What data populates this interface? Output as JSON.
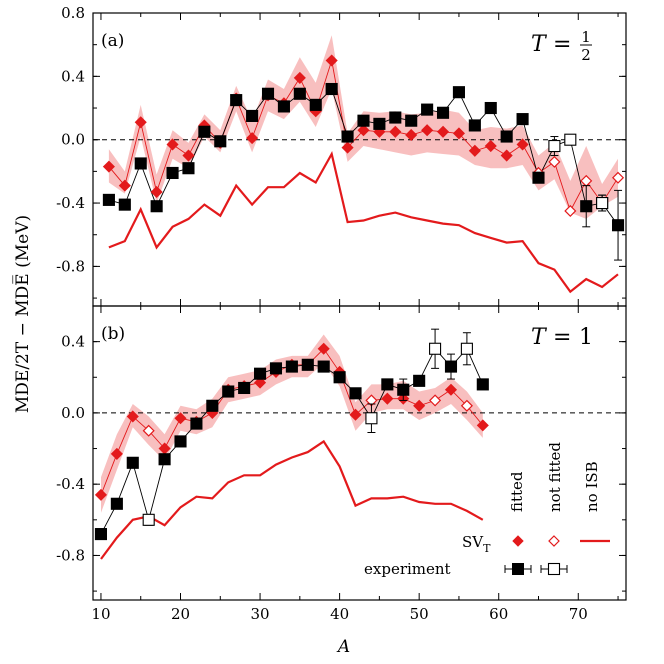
{
  "chart_data": [
    {
      "type": "line",
      "panel_label": "(a)",
      "panel_title": "T = 1/2",
      "panel_title_T": "T",
      "panel_title_num": "1",
      "panel_title_den": "2",
      "ylabel": "MDE/2T − MDE̅ (MeV)",
      "ylim": [
        -1.05,
        0.8
      ],
      "yticks": [
        -0.8,
        -0.4,
        0.0,
        0.4,
        0.8
      ],
      "ytick_labels": [
        "-0.8",
        "-0.4",
        "0.0",
        "0.4",
        "0.8"
      ],
      "xlim": [
        9,
        76
      ],
      "zero_line": "dashed",
      "series": [
        {
          "name": "fitted",
          "style": "band",
          "color": "#f7b4b4",
          "x": [
            11,
            13,
            15,
            17,
            19,
            21,
            23,
            25,
            27,
            29,
            31,
            33,
            35,
            37,
            39,
            41,
            43,
            45,
            47,
            49,
            51,
            53,
            55,
            57,
            59,
            61,
            63,
            65,
            67,
            69,
            71,
            73,
            75
          ],
          "lower": [
            -0.27,
            -0.34,
            0.02,
            -0.4,
            -0.12,
            -0.18,
            0.02,
            -0.08,
            0.18,
            -0.08,
            0.18,
            0.13,
            0.24,
            0.08,
            0.32,
            -0.14,
            -0.04,
            -0.06,
            -0.08,
            -0.1,
            -0.08,
            -0.09,
            -0.1,
            -0.16,
            -0.18,
            -0.18,
            -0.16,
            -0.32,
            -0.25,
            -0.46,
            -0.5,
            -0.42,
            -0.36
          ],
          "upper": [
            -0.06,
            -0.2,
            0.22,
            -0.22,
            0.06,
            -0.02,
            0.16,
            0.06,
            0.34,
            0.12,
            0.38,
            0.32,
            0.52,
            0.36,
            0.66,
            0.04,
            0.18,
            0.17,
            0.18,
            0.16,
            0.17,
            0.19,
            0.17,
            0.06,
            0.08,
            0.07,
            0.09,
            -0.1,
            -0.02,
            -0.26,
            -0.04,
            -0.28,
            -0.12
          ]
        },
        {
          "name": "SV_T fitted",
          "style": "filled-diamond",
          "color": "#e31a1c",
          "x": [
            11,
            13,
            15,
            17,
            19,
            21,
            23,
            25,
            27,
            29,
            31,
            33,
            35,
            37,
            39,
            41,
            43,
            45,
            47,
            49,
            51,
            53,
            55,
            57,
            59,
            61,
            63,
            65
          ],
          "values": [
            -0.17,
            -0.29,
            0.11,
            -0.33,
            -0.03,
            -0.1,
            0.09,
            -0.02,
            0.26,
            0.01,
            0.28,
            0.23,
            0.39,
            0.18,
            0.5,
            -0.05,
            0.06,
            0.05,
            0.05,
            0.03,
            0.06,
            0.05,
            0.04,
            -0.07,
            -0.04,
            -0.1,
            -0.03,
            -0.21
          ]
        },
        {
          "name": "SV_T not fitted",
          "style": "open-diamond",
          "color": "#e31a1c",
          "x": [
            65,
            67,
            69,
            71,
            73,
            75
          ],
          "values": [
            -0.21,
            -0.14,
            -0.45,
            -0.26,
            -0.4,
            -0.24
          ]
        },
        {
          "name": "no ISB",
          "style": "line",
          "color": "#e31a1c",
          "x": [
            11,
            13,
            15,
            17,
            19,
            21,
            23,
            25,
            27,
            29,
            31,
            33,
            35,
            37,
            39,
            41,
            43,
            45,
            47,
            49,
            51,
            53,
            55,
            57,
            59,
            61,
            63,
            65,
            67,
            69,
            71,
            73,
            75
          ],
          "values": [
            -0.68,
            -0.64,
            -0.44,
            -0.68,
            -0.55,
            -0.5,
            -0.41,
            -0.48,
            -0.29,
            -0.41,
            -0.3,
            -0.3,
            -0.21,
            -0.27,
            -0.09,
            -0.52,
            -0.51,
            -0.48,
            -0.46,
            -0.49,
            -0.51,
            -0.53,
            -0.54,
            -0.59,
            -0.62,
            -0.65,
            -0.64,
            -0.78,
            -0.82,
            -0.96,
            -0.88,
            -0.93,
            -0.85
          ]
        },
        {
          "name": "experiment fitted",
          "style": "filled-square",
          "color": "#000000",
          "x": [
            11,
            13,
            15,
            17,
            19,
            21,
            23,
            25,
            27,
            29,
            31,
            33,
            35,
            37,
            39,
            41,
            43,
            45,
            47,
            49,
            51,
            53,
            55,
            57,
            59,
            61,
            63,
            65,
            67,
            69,
            71,
            73,
            75
          ],
          "values": [
            -0.38,
            -0.41,
            -0.15,
            -0.42,
            -0.21,
            -0.18,
            0.05,
            -0.01,
            0.25,
            0.15,
            0.29,
            0.21,
            0.29,
            0.22,
            0.32,
            0.02,
            0.12,
            0.1,
            0.14,
            0.12,
            0.19,
            0.17,
            0.3,
            0.09,
            0.2,
            0.02,
            0.13,
            -0.24,
            null,
            null,
            -0.42,
            -0.4,
            -0.54
          ],
          "errors": [
            0,
            0,
            0,
            0,
            0,
            0,
            0,
            0,
            0,
            0,
            0,
            0,
            0,
            0,
            0,
            0,
            0,
            0,
            0,
            0,
            0,
            0,
            0,
            0,
            0,
            0,
            0,
            0,
            0,
            0,
            0.13,
            0.05,
            0.22
          ]
        },
        {
          "name": "experiment not fitted",
          "style": "open-square",
          "color": "#000000",
          "x": [
            67,
            69,
            73
          ],
          "values": [
            -0.04,
            0.0,
            -0.4
          ],
          "errors": [
            0.06,
            0.03,
            0.05
          ]
        }
      ],
      "experiment_path": {
        "x": [
          11,
          13,
          15,
          17,
          19,
          21,
          23,
          25,
          27,
          29,
          31,
          33,
          35,
          37,
          39,
          41,
          43,
          45,
          47,
          49,
          51,
          53,
          55,
          57,
          59,
          61,
          63,
          65,
          67,
          69,
          71,
          73,
          75
        ],
        "values": [
          -0.38,
          -0.41,
          -0.15,
          -0.42,
          -0.21,
          -0.18,
          0.05,
          -0.01,
          0.25,
          0.15,
          0.29,
          0.21,
          0.29,
          0.22,
          0.32,
          0.02,
          0.12,
          0.1,
          0.14,
          0.12,
          0.19,
          0.17,
          0.3,
          0.09,
          0.2,
          0.02,
          0.13,
          -0.24,
          -0.04,
          0.0,
          -0.42,
          -0.4,
          -0.54
        ]
      },
      "svt_path": {
        "x": [
          11,
          13,
          15,
          17,
          19,
          21,
          23,
          25,
          27,
          29,
          31,
          33,
          35,
          37,
          39,
          41,
          43,
          45,
          47,
          49,
          51,
          53,
          55,
          57,
          59,
          61,
          63,
          65,
          67,
          69,
          71,
          73,
          75
        ],
        "values": [
          -0.17,
          -0.29,
          0.11,
          -0.33,
          -0.03,
          -0.1,
          0.09,
          -0.02,
          0.26,
          0.01,
          0.28,
          0.23,
          0.39,
          0.18,
          0.5,
          -0.05,
          0.06,
          0.05,
          0.05,
          0.03,
          0.06,
          0.05,
          0.04,
          -0.07,
          -0.04,
          -0.1,
          -0.03,
          -0.21,
          -0.14,
          -0.45,
          -0.26,
          -0.4,
          -0.24
        ]
      }
    },
    {
      "type": "line",
      "panel_label": "(b)",
      "panel_title": "T = 1",
      "panel_title_T": "T",
      "panel_title_num": "1",
      "ylim": [
        -1.05,
        0.6
      ],
      "yticks": [
        -0.8,
        -0.4,
        0.0,
        0.4
      ],
      "ytick_labels": [
        "-0.8",
        "-0.4",
        "0.0",
        "0.4"
      ],
      "xlim": [
        9,
        76
      ],
      "xlabel": "A",
      "xticks": [
        10,
        20,
        30,
        40,
        50,
        60,
        70
      ],
      "xtick_labels": [
        "10",
        "20",
        "30",
        "40",
        "50",
        "60",
        "70"
      ],
      "zero_line": "dashed",
      "series": [
        {
          "name": "fitted",
          "style": "band",
          "color": "#f7b4b4",
          "x": [
            10,
            12,
            14,
            16,
            18,
            20,
            22,
            24,
            26,
            28,
            30,
            32,
            34,
            36,
            38,
            40,
            42,
            44,
            46,
            48,
            50,
            52,
            54,
            56,
            58
          ],
          "lower": [
            -0.56,
            -0.32,
            -0.08,
            -0.18,
            -0.27,
            -0.1,
            -0.12,
            -0.08,
            0.06,
            0.08,
            0.1,
            0.16,
            0.2,
            0.2,
            0.28,
            0.15,
            -0.1,
            0.0,
            0.02,
            0.02,
            -0.04,
            0.0,
            0.05,
            -0.04,
            -0.14
          ],
          "upper": [
            -0.36,
            -0.12,
            0.05,
            -0.02,
            -0.12,
            0.04,
            0.02,
            0.08,
            0.2,
            0.22,
            0.24,
            0.3,
            0.32,
            0.32,
            0.44,
            0.32,
            0.06,
            0.16,
            0.16,
            0.18,
            0.12,
            0.14,
            0.2,
            0.12,
            0.0
          ]
        },
        {
          "name": "SV_T fitted",
          "style": "filled-diamond",
          "color": "#e31a1c",
          "x": [
            10,
            12,
            14,
            18,
            20,
            22,
            24,
            26,
            28,
            30,
            32,
            34,
            36,
            38,
            40,
            42,
            46,
            48,
            50,
            54,
            58
          ],
          "values": [
            -0.46,
            -0.23,
            -0.02,
            -0.2,
            -0.03,
            -0.05,
            0.0,
            0.13,
            0.15,
            0.17,
            0.23,
            0.27,
            0.27,
            0.36,
            0.23,
            -0.01,
            0.08,
            0.08,
            0.04,
            0.13,
            -0.07
          ]
        },
        {
          "name": "SV_T not fitted",
          "style": "open-diamond",
          "color": "#e31a1c",
          "x": [
            16,
            44,
            52,
            56
          ],
          "values": [
            -0.1,
            0.07,
            0.07,
            0.04
          ]
        },
        {
          "name": "no ISB",
          "style": "line",
          "color": "#e31a1c",
          "x": [
            10,
            12,
            14,
            16,
            18,
            20,
            22,
            24,
            26,
            28,
            30,
            32,
            34,
            36,
            38,
            40,
            42,
            44,
            46,
            48,
            50,
            52,
            54,
            56,
            58
          ],
          "values": [
            -0.82,
            -0.7,
            -0.6,
            -0.58,
            -0.63,
            -0.53,
            -0.47,
            -0.48,
            -0.39,
            -0.35,
            -0.35,
            -0.29,
            -0.25,
            -0.22,
            -0.16,
            -0.3,
            -0.52,
            -0.48,
            -0.48,
            -0.47,
            -0.5,
            -0.51,
            -0.51,
            -0.55,
            -0.6
          ]
        },
        {
          "name": "experiment fitted",
          "style": "filled-square",
          "color": "#000000",
          "x": [
            10,
            12,
            14,
            18,
            20,
            22,
            24,
            26,
            28,
            30,
            32,
            34,
            36,
            38,
            40,
            42,
            46,
            48,
            50,
            54,
            58
          ],
          "values": [
            -0.68,
            -0.51,
            -0.28,
            -0.26,
            -0.16,
            -0.06,
            0.04,
            0.12,
            0.14,
            0.22,
            0.25,
            0.26,
            0.27,
            0.26,
            0.2,
            0.11,
            0.16,
            0.13,
            0.18,
            0.26,
            0.16
          ],
          "errors": [
            0,
            0,
            0,
            0,
            0,
            0,
            0,
            0,
            0,
            0,
            0,
            0,
            0,
            0,
            0,
            0,
            0,
            0.06,
            0,
            0.07,
            0
          ]
        },
        {
          "name": "experiment not fitted",
          "style": "open-square",
          "color": "#000000",
          "x": [
            16,
            44,
            52,
            56
          ],
          "values": [
            -0.6,
            -0.03,
            0.36,
            0.36
          ],
          "errors": [
            0.03,
            0.08,
            0.11,
            0.09
          ]
        }
      ],
      "experiment_path": {
        "x": [
          10,
          12,
          14,
          16,
          18,
          20,
          22,
          24,
          26,
          28,
          30,
          32,
          34,
          36,
          38,
          40,
          42,
          44,
          46,
          48,
          50,
          52,
          54,
          56,
          58
        ],
        "values": [
          -0.68,
          -0.51,
          -0.28,
          -0.6,
          -0.26,
          -0.16,
          -0.06,
          0.04,
          0.12,
          0.14,
          0.22,
          0.25,
          0.26,
          0.27,
          0.26,
          0.2,
          0.11,
          -0.03,
          0.16,
          0.13,
          0.18,
          0.36,
          0.26,
          0.36,
          0.16
        ]
      },
      "svt_path": {
        "x": [
          10,
          12,
          14,
          16,
          18,
          20,
          22,
          24,
          26,
          28,
          30,
          32,
          34,
          36,
          38,
          40,
          42,
          44,
          46,
          48,
          50,
          52,
          54,
          56,
          58
        ],
        "values": [
          -0.46,
          -0.23,
          -0.02,
          -0.1,
          -0.2,
          -0.03,
          -0.05,
          0.0,
          0.13,
          0.15,
          0.17,
          0.23,
          0.27,
          0.27,
          0.36,
          0.23,
          -0.01,
          0.07,
          0.08,
          0.08,
          0.04,
          0.07,
          0.13,
          0.04,
          -0.07
        ]
      }
    }
  ],
  "legend": {
    "placement": "bottom-right of panel (b)",
    "column_headers": [
      "fitted",
      "not fitted",
      "no ISB"
    ],
    "row_labels": {
      "svt": "SV",
      "svt_sub": "T",
      "experiment": "experiment"
    }
  }
}
